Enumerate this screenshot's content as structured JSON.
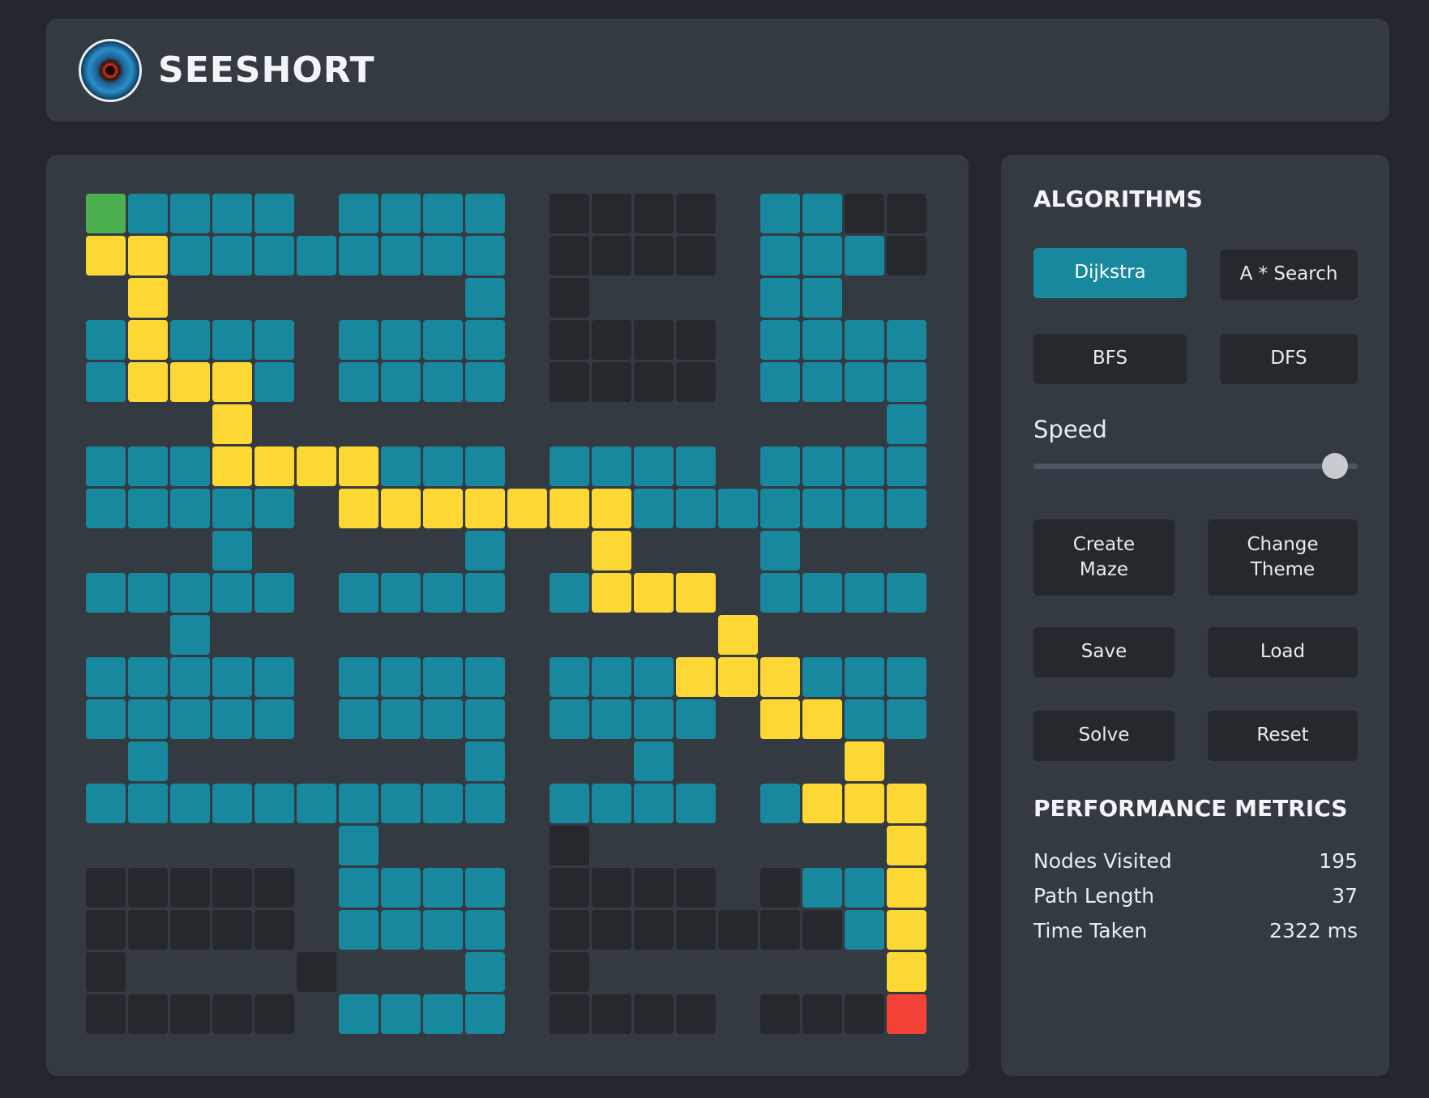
{
  "app": {
    "title": "SEESHORT"
  },
  "grid": {
    "rows": [
      "SPPPP.PPPP.WWWW.PPWW",
      "RRPPPPPPPP.WWWW.PPPW",
      ".R.......P.W....PP..",
      "PRPPP.PPPP.WWWW.PPPP",
      "PRRRP.PPPP.WWWW.PPPP",
      "...R...............P",
      "PPPRRRRPPP.PPPP.PPPP",
      "PPPPP.RRRRRRRPPPPPPP",
      "...P.....P..R...P...",
      "PPPPP.PPPP.PRRR.PPPP",
      "..P............R....",
      "PPPPP.PPPP.PPPRRRPPP",
      "PPPPP.PPPP.PPPP.RRPP",
      ".P.......P...P....R.",
      "PPPPPPPPPP.PPPP.PRRR",
      "......P....W.......R",
      "WWWWW.PPPP.WWWW.WPPR",
      "WWWWW.PPPP.WWWWWWWPR",
      "W....W...P.W.......R",
      "WWWWW.PPPP.WWWW.WWWE"
    ],
    "legend": {
      "P": "#17889e",
      "W": "#25282d",
      "R": "#fdd835",
      "S": "#4caf50",
      "E": "#f44336"
    }
  },
  "sidebar": {
    "algorithms_title": "ALGORITHMS",
    "algorithms": {
      "dijkstra": "Dijkstra",
      "astar": "A * Search",
      "bfs": "BFS",
      "dfs": "DFS"
    },
    "selected_algorithm": "Dijkstra",
    "speed": {
      "label": "Speed",
      "value": 0.93
    },
    "actions": {
      "create_maze": "Create\nMaze",
      "change_theme": "Change\nTheme",
      "save": "Save",
      "load": "Load",
      "solve": "Solve",
      "reset": "Reset"
    },
    "metrics_title": "PERFORMANCE METRICS",
    "metrics": {
      "nodes_visited": {
        "label": "Nodes Visited",
        "value": "195"
      },
      "path_length": {
        "label": "Path Length",
        "value": "37"
      },
      "time_taken": {
        "label": "Time Taken",
        "value": "2322 ms"
      }
    }
  },
  "colors": {
    "background": "#23272d",
    "panel": "#343a42",
    "accent": "#17889e",
    "route": "#fdd835",
    "start": "#4caf50",
    "end": "#f44336"
  }
}
